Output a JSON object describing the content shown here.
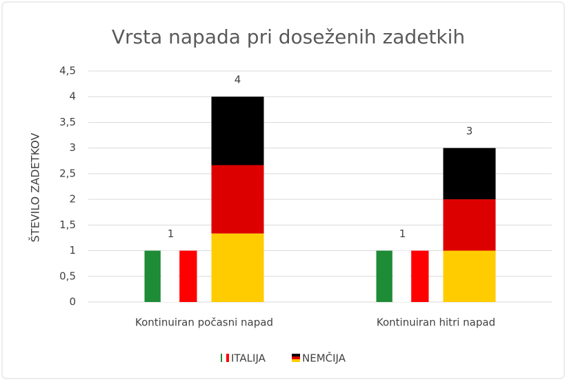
{
  "chart_data": {
    "type": "bar",
    "title": "Vrsta napada pri doseženih zadetkih",
    "y_label": "ŠTEVILO ZADETKOV",
    "categories": [
      "Kontinuiran počasni napad",
      "Kontinuiran hitri napad"
    ],
    "series": [
      {
        "name": "ITALIJA",
        "pattern": "vertical",
        "colors": [
          "#1e8b36",
          "#ffffff",
          "#ff0000"
        ],
        "values": [
          1,
          1
        ]
      },
      {
        "name": "NEMČIJA",
        "pattern": "horizontal",
        "colors": [
          "#000000",
          "#dd0000",
          "#ffcc00"
        ],
        "values": [
          4,
          3
        ]
      }
    ],
    "ylim": [
      0,
      4.5
    ],
    "yticks": [
      0,
      {
        "value": 0.5,
        "label": "0,5"
      },
      1,
      {
        "value": 1.5,
        "label": "1,5"
      },
      2,
      {
        "value": 2.5,
        "label": "2,5"
      },
      3,
      {
        "value": 3.5,
        "label": "3,5"
      },
      4,
      {
        "value": 4.5,
        "label": "4,5"
      }
    ],
    "grid": true,
    "legend": "bottom"
  }
}
